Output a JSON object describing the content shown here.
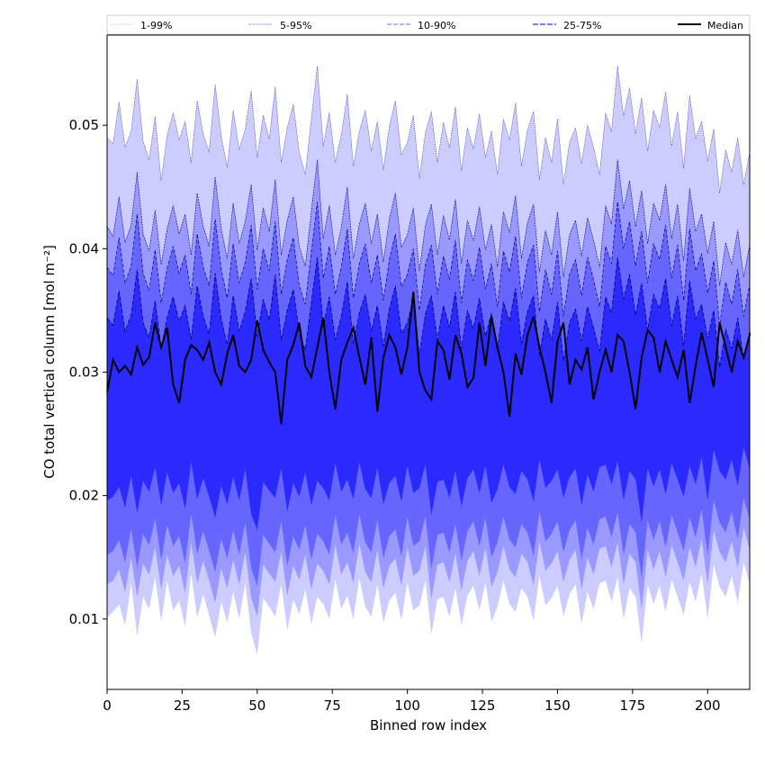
{
  "chart_data": {
    "type": "area",
    "title": "",
    "xlabel": "Binned row index",
    "ylabel": "CO total vertical column [mol m⁻²]",
    "xlim": [
      0,
      214
    ],
    "ylim": [
      0.0043,
      0.0573
    ],
    "xticks": [
      0,
      25,
      50,
      75,
      100,
      125,
      150,
      175,
      200
    ],
    "yticks": [
      0.01,
      0.02,
      0.03,
      0.04,
      0.05
    ],
    "ytick_labels": [
      "0.01",
      "0.02",
      "0.03",
      "0.04",
      "0.05"
    ],
    "grid": false,
    "legend_position": "top, above plot, single row",
    "legend": [
      "1-99%",
      "5-95%",
      "10-90%",
      "25-75%",
      "Median"
    ],
    "colors": {
      "band_1_99": "#ccccff",
      "band_5_95": "#9999ff",
      "band_10_90": "#6666ff",
      "band_25_75": "#2a2aff",
      "median": "#000000",
      "upper_edge": "#000080"
    },
    "x_step": 2,
    "series": [
      {
        "name": "1-99%",
        "lower": [
          0.0101,
          0.0106,
          0.0112,
          0.0095,
          0.0129,
          0.0086,
          0.0118,
          0.0108,
          0.0134,
          0.0098,
          0.0131,
          0.0107,
          0.0115,
          0.0094,
          0.0137,
          0.0101,
          0.012,
          0.0103,
          0.0085,
          0.0114,
          0.0097,
          0.0122,
          0.01,
          0.0129,
          0.0089,
          0.0071,
          0.0117,
          0.011,
          0.0102,
          0.0128,
          0.0091,
          0.0116,
          0.0104,
          0.0124,
          0.0096,
          0.0118,
          0.0112,
          0.01,
          0.0132,
          0.0108,
          0.0119,
          0.01,
          0.0133,
          0.011,
          0.0102,
          0.0128,
          0.0097,
          0.0115,
          0.0121,
          0.0099,
          0.013,
          0.0107,
          0.0111,
          0.0131,
          0.0088,
          0.0116,
          0.0118,
          0.0102,
          0.0125,
          0.0095,
          0.0119,
          0.0127,
          0.0107,
          0.013,
          0.0098,
          0.011,
          0.0131,
          0.0112,
          0.0106,
          0.0125,
          0.0118,
          0.0099,
          0.0135,
          0.0111,
          0.0117,
          0.0127,
          0.0102,
          0.012,
          0.0128,
          0.0096,
          0.0122,
          0.0108,
          0.0129,
          0.0131,
          0.0114,
          0.0134,
          0.01,
          0.0125,
          0.0118,
          0.008,
          0.0128,
          0.0112,
          0.0127,
          0.0106,
          0.0132,
          0.0118,
          0.0103,
          0.013,
          0.0114,
          0.0137,
          0.01,
          0.0144,
          0.0126,
          0.0118,
          0.0135,
          0.0113,
          0.0146,
          0.0128,
          0.0152
        ],
        "upper": [
          0.049,
          0.0485,
          0.0519,
          0.0482,
          0.0495,
          0.0537,
          0.0487,
          0.0472,
          0.0507,
          0.0455,
          0.0492,
          0.051,
          0.0488,
          0.0503,
          0.047,
          0.052,
          0.0493,
          0.0478,
          0.0533,
          0.0491,
          0.0466,
          0.0512,
          0.048,
          0.0497,
          0.0528,
          0.0474,
          0.0508,
          0.0489,
          0.0531,
          0.047,
          0.0498,
          0.0517,
          0.0478,
          0.046,
          0.0505,
          0.0548,
          0.0483,
          0.051,
          0.047,
          0.0492,
          0.0525,
          0.0467,
          0.0495,
          0.0512,
          0.0479,
          0.0503,
          0.0464,
          0.0499,
          0.052,
          0.0476,
          0.0486,
          0.0508,
          0.0457,
          0.0494,
          0.0511,
          0.047,
          0.0502,
          0.0482,
          0.0515,
          0.0463,
          0.0498,
          0.0481,
          0.0509,
          0.0474,
          0.0495,
          0.046,
          0.0505,
          0.0488,
          0.0518,
          0.0467,
          0.0496,
          0.0511,
          0.0456,
          0.049,
          0.047,
          0.0505,
          0.0452,
          0.0486,
          0.0498,
          0.0469,
          0.05,
          0.0482,
          0.046,
          0.051,
          0.0495,
          0.0548,
          0.0507,
          0.053,
          0.0493,
          0.0522,
          0.0479,
          0.0512,
          0.0498,
          0.0527,
          0.0483,
          0.0511,
          0.0465,
          0.0524,
          0.0489,
          0.0503,
          0.0471,
          0.0497,
          0.0445,
          0.048,
          0.0462,
          0.049,
          0.0452,
          0.0478,
          0.0487
        ]
      },
      {
        "name": "5-95%",
        "lower": [
          0.0128,
          0.0131,
          0.014,
          0.0122,
          0.015,
          0.0118,
          0.0145,
          0.0136,
          0.0158,
          0.0124,
          0.0152,
          0.0135,
          0.0143,
          0.0121,
          0.0162,
          0.0129,
          0.0147,
          0.0131,
          0.0113,
          0.0141,
          0.0125,
          0.0148,
          0.0128,
          0.0154,
          0.0117,
          0.0102,
          0.0144,
          0.0137,
          0.013,
          0.0155,
          0.0119,
          0.0143,
          0.0132,
          0.0152,
          0.0124,
          0.0145,
          0.0139,
          0.0128,
          0.016,
          0.0136,
          0.0146,
          0.0129,
          0.0161,
          0.0138,
          0.013,
          0.0156,
          0.0125,
          0.0143,
          0.0149,
          0.0127,
          0.0158,
          0.0135,
          0.0139,
          0.0159,
          0.0116,
          0.0144,
          0.0146,
          0.013,
          0.0153,
          0.0123,
          0.0147,
          0.0155,
          0.0135,
          0.0158,
          0.0126,
          0.0138,
          0.0159,
          0.014,
          0.0134,
          0.0153,
          0.0146,
          0.0127,
          0.0163,
          0.0139,
          0.0145,
          0.0155,
          0.013,
          0.0148,
          0.0156,
          0.0124,
          0.015,
          0.0136,
          0.0157,
          0.0159,
          0.0142,
          0.0162,
          0.0128,
          0.0153,
          0.0146,
          0.0108,
          0.0156,
          0.014,
          0.0155,
          0.0134,
          0.016,
          0.0146,
          0.0131,
          0.0158,
          0.0142,
          0.0165,
          0.0128,
          0.0172,
          0.0154,
          0.0146,
          0.0163,
          0.0141,
          0.0174,
          0.0156,
          0.018
        ],
        "upper": [
          0.0418,
          0.041,
          0.0442,
          0.0405,
          0.0419,
          0.0462,
          0.0412,
          0.0398,
          0.0431,
          0.0387,
          0.0416,
          0.0435,
          0.0412,
          0.0428,
          0.0395,
          0.0445,
          0.0418,
          0.0402,
          0.0458,
          0.0416,
          0.0392,
          0.0437,
          0.0404,
          0.0422,
          0.0452,
          0.0399,
          0.0433,
          0.0414,
          0.0456,
          0.0395,
          0.0423,
          0.0442,
          0.0402,
          0.0386,
          0.043,
          0.0472,
          0.0408,
          0.0435,
          0.0395,
          0.0417,
          0.045,
          0.0392,
          0.042,
          0.0437,
          0.0404,
          0.0428,
          0.0389,
          0.0424,
          0.0445,
          0.0401,
          0.0411,
          0.0433,
          0.0382,
          0.0419,
          0.0436,
          0.0395,
          0.0427,
          0.0407,
          0.044,
          0.0388,
          0.0423,
          0.0406,
          0.0434,
          0.0399,
          0.042,
          0.0385,
          0.043,
          0.0413,
          0.0443,
          0.0392,
          0.0421,
          0.0436,
          0.0381,
          0.0415,
          0.0395,
          0.043,
          0.0377,
          0.0411,
          0.0423,
          0.0394,
          0.0425,
          0.0407,
          0.0385,
          0.0435,
          0.042,
          0.0472,
          0.0432,
          0.0455,
          0.0418,
          0.0447,
          0.0404,
          0.0437,
          0.0423,
          0.0452,
          0.0408,
          0.0436,
          0.039,
          0.0449,
          0.0414,
          0.0428,
          0.0396,
          0.0422,
          0.037,
          0.0405,
          0.0387,
          0.0415,
          0.0377,
          0.0403,
          0.043
        ]
      },
      {
        "name": "10-90%",
        "lower": [
          0.0152,
          0.0155,
          0.0164,
          0.0146,
          0.0173,
          0.0142,
          0.0169,
          0.016,
          0.0181,
          0.0148,
          0.0176,
          0.0159,
          0.0167,
          0.0145,
          0.0185,
          0.0153,
          0.0171,
          0.0155,
          0.0138,
          0.0165,
          0.0149,
          0.0172,
          0.0152,
          0.0178,
          0.0141,
          0.0127,
          0.0168,
          0.0161,
          0.0154,
          0.0179,
          0.0143,
          0.0167,
          0.0156,
          0.0176,
          0.0148,
          0.0169,
          0.0163,
          0.0152,
          0.0184,
          0.016,
          0.017,
          0.0153,
          0.0185,
          0.0162,
          0.0154,
          0.018,
          0.0149,
          0.0167,
          0.0173,
          0.0151,
          0.0182,
          0.0159,
          0.0163,
          0.0183,
          0.014,
          0.0168,
          0.017,
          0.0154,
          0.0177,
          0.0147,
          0.0171,
          0.0179,
          0.0159,
          0.0182,
          0.015,
          0.0162,
          0.0183,
          0.0164,
          0.0158,
          0.0177,
          0.017,
          0.0151,
          0.0187,
          0.0163,
          0.0169,
          0.0179,
          0.0154,
          0.0172,
          0.018,
          0.0148,
          0.0174,
          0.016,
          0.0181,
          0.0183,
          0.0166,
          0.0186,
          0.0152,
          0.0177,
          0.017,
          0.0133,
          0.018,
          0.0164,
          0.0179,
          0.0158,
          0.0184,
          0.017,
          0.0155,
          0.0182,
          0.0166,
          0.0189,
          0.0152,
          0.0196,
          0.0178,
          0.017,
          0.0187,
          0.0165,
          0.0198,
          0.018,
          0.0204
        ],
        "upper": [
          0.0385,
          0.0378,
          0.0409,
          0.0372,
          0.0386,
          0.0428,
          0.038,
          0.0366,
          0.0399,
          0.0356,
          0.0384,
          0.0402,
          0.038,
          0.0395,
          0.0363,
          0.0412,
          0.0385,
          0.037,
          0.0424,
          0.0383,
          0.036,
          0.0404,
          0.0372,
          0.0389,
          0.0419,
          0.0367,
          0.04,
          0.0382,
          0.0422,
          0.0363,
          0.0391,
          0.0409,
          0.037,
          0.0355,
          0.0397,
          0.0438,
          0.0376,
          0.0402,
          0.0363,
          0.0385,
          0.0416,
          0.036,
          0.0388,
          0.0404,
          0.0372,
          0.0395,
          0.0358,
          0.0391,
          0.0412,
          0.0369,
          0.0379,
          0.04,
          0.035,
          0.0387,
          0.0403,
          0.0363,
          0.0394,
          0.0375,
          0.0407,
          0.0356,
          0.0391,
          0.0374,
          0.0401,
          0.0367,
          0.0388,
          0.0353,
          0.0398,
          0.0381,
          0.041,
          0.036,
          0.0389,
          0.0403,
          0.0349,
          0.0383,
          0.0363,
          0.0398,
          0.0345,
          0.0379,
          0.0391,
          0.0362,
          0.0393,
          0.0375,
          0.0353,
          0.0402,
          0.0388,
          0.0438,
          0.04,
          0.0422,
          0.0386,
          0.0414,
          0.0372,
          0.0404,
          0.0391,
          0.0419,
          0.0376,
          0.0403,
          0.0358,
          0.0416,
          0.0382,
          0.0396,
          0.0364,
          0.039,
          0.0338,
          0.0373,
          0.0355,
          0.0383,
          0.0345,
          0.0371,
          0.0399
        ]
      },
      {
        "name": "25-75%",
        "lower": [
          0.0196,
          0.0199,
          0.0207,
          0.019,
          0.0216,
          0.0186,
          0.0212,
          0.0203,
          0.0223,
          0.0192,
          0.0219,
          0.0202,
          0.021,
          0.0189,
          0.0227,
          0.0197,
          0.0214,
          0.0199,
          0.0182,
          0.0208,
          0.0193,
          0.0215,
          0.0196,
          0.0221,
          0.0185,
          0.0172,
          0.0211,
          0.0204,
          0.0198,
          0.0222,
          0.0187,
          0.021,
          0.0199,
          0.0219,
          0.0192,
          0.0212,
          0.0206,
          0.0196,
          0.0226,
          0.0203,
          0.0213,
          0.0197,
          0.0227,
          0.0205,
          0.0198,
          0.0223,
          0.0193,
          0.021,
          0.0216,
          0.0195,
          0.0224,
          0.0202,
          0.0206,
          0.0225,
          0.0184,
          0.0211,
          0.0213,
          0.0198,
          0.022,
          0.0191,
          0.0214,
          0.0221,
          0.0202,
          0.0224,
          0.0194,
          0.0205,
          0.0225,
          0.0207,
          0.0201,
          0.022,
          0.0213,
          0.0195,
          0.0229,
          0.0206,
          0.0212,
          0.0221,
          0.0198,
          0.0215,
          0.0222,
          0.0192,
          0.0217,
          0.0203,
          0.0223,
          0.0225,
          0.0209,
          0.0228,
          0.0196,
          0.022,
          0.0213,
          0.0178,
          0.0222,
          0.0207,
          0.0221,
          0.0201,
          0.0226,
          0.0213,
          0.0199,
          0.0224,
          0.0209,
          0.0231,
          0.0196,
          0.0237,
          0.022,
          0.0213,
          0.0229,
          0.0208,
          0.0239,
          0.0222,
          0.0244
        ],
        "upper": [
          0.0344,
          0.0338,
          0.0366,
          0.0333,
          0.0346,
          0.0383,
          0.034,
          0.0328,
          0.0358,
          0.0319,
          0.0344,
          0.0361,
          0.0341,
          0.0354,
          0.0326,
          0.037,
          0.0345,
          0.0331,
          0.038,
          0.0343,
          0.0322,
          0.0362,
          0.0333,
          0.0349,
          0.0376,
          0.0329,
          0.0359,
          0.0342,
          0.0379,
          0.0326,
          0.035,
          0.0367,
          0.0332,
          0.0318,
          0.0356,
          0.0393,
          0.0337,
          0.0361,
          0.0326,
          0.0345,
          0.0373,
          0.0323,
          0.0348,
          0.0363,
          0.0333,
          0.0354,
          0.0321,
          0.0351,
          0.037,
          0.0331,
          0.034,
          0.0359,
          0.0314,
          0.0347,
          0.0362,
          0.0326,
          0.0354,
          0.0336,
          0.0365,
          0.0319,
          0.035,
          0.0335,
          0.036,
          0.0329,
          0.0348,
          0.0317,
          0.0357,
          0.0341,
          0.0368,
          0.0323,
          0.0349,
          0.0362,
          0.0313,
          0.0343,
          0.0326,
          0.0357,
          0.0309,
          0.034,
          0.0351,
          0.0325,
          0.0353,
          0.0336,
          0.0317,
          0.0361,
          0.0348,
          0.0393,
          0.0359,
          0.0379,
          0.0346,
          0.0372,
          0.0334,
          0.0363,
          0.0351,
          0.0376,
          0.0337,
          0.0362,
          0.0321,
          0.0374,
          0.0343,
          0.0355,
          0.0327,
          0.035,
          0.0304,
          0.0335,
          0.0319,
          0.0344,
          0.031,
          0.0333,
          0.0358
        ]
      },
      {
        "name": "Median",
        "values": [
          0.0284,
          0.031,
          0.03,
          0.0305,
          0.0298,
          0.032,
          0.0306,
          0.0312,
          0.034,
          0.032,
          0.0336,
          0.029,
          0.0275,
          0.031,
          0.0322,
          0.0318,
          0.031,
          0.0324,
          0.03,
          0.029,
          0.0315,
          0.033,
          0.0305,
          0.03,
          0.031,
          0.0342,
          0.0318,
          0.0308,
          0.03,
          0.0258,
          0.031,
          0.0322,
          0.034,
          0.0305,
          0.0296,
          0.032,
          0.0344,
          0.03,
          0.027,
          0.031,
          0.0324,
          0.0336,
          0.0312,
          0.029,
          0.0328,
          0.0268,
          0.0312,
          0.033,
          0.032,
          0.0298,
          0.032,
          0.0365,
          0.03,
          0.0285,
          0.0278,
          0.0325,
          0.0318,
          0.0294,
          0.033,
          0.0315,
          0.0288,
          0.0295,
          0.034,
          0.0305,
          0.0345,
          0.032,
          0.03,
          0.0264,
          0.0315,
          0.0298,
          0.033,
          0.0345,
          0.032,
          0.03,
          0.0275,
          0.0325,
          0.034,
          0.029,
          0.031,
          0.0302,
          0.032,
          0.0278,
          0.03,
          0.0318,
          0.03,
          0.033,
          0.0325,
          0.03,
          0.027,
          0.0312,
          0.0334,
          0.0328,
          0.03,
          0.0325,
          0.031,
          0.0296,
          0.0318,
          0.0275,
          0.0305,
          0.0332,
          0.031,
          0.0288,
          0.034,
          0.032,
          0.03,
          0.0325,
          0.0312,
          0.033,
          0.0332
        ]
      }
    ]
  }
}
